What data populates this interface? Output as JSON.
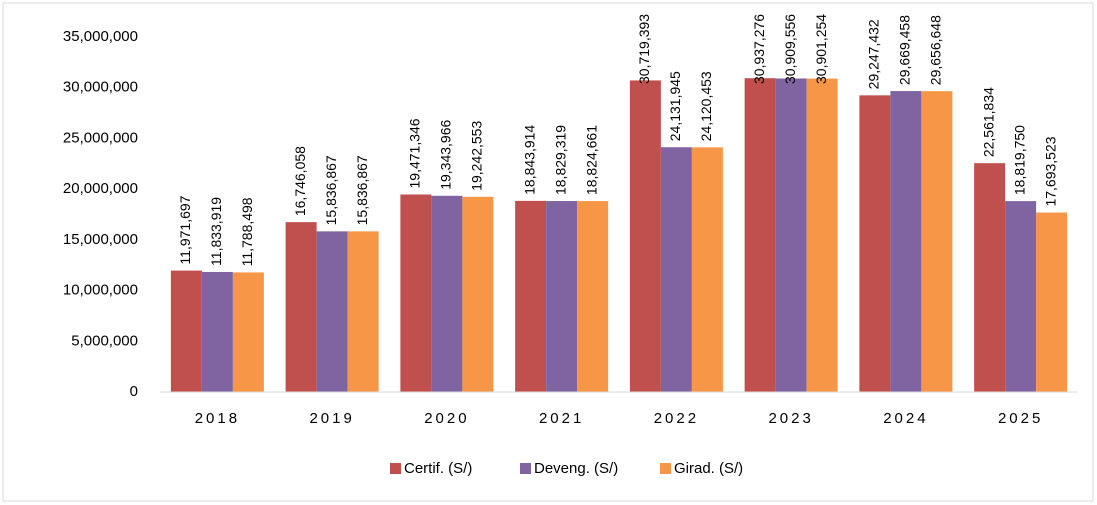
{
  "chart_data": {
    "type": "bar",
    "categories": [
      "2018",
      "2019",
      "2020",
      "2021",
      "2022",
      "2023",
      "2024",
      "2025"
    ],
    "series": [
      {
        "name": "Certif. (S/)",
        "color": "#c0504d",
        "values": [
          11971697,
          16746058,
          19471346,
          18843914,
          30719393,
          30937276,
          29247432,
          22561834
        ],
        "value_labels": [
          "11,971,697",
          "16,746,058",
          "19,471,346",
          "18,843,914",
          "30,719,393",
          "30,937,276",
          "29,247,432",
          "22,561,834"
        ]
      },
      {
        "name": "Deveng. (S/)",
        "color": "#8064a2",
        "values": [
          11833919,
          15836867,
          19343966,
          18829319,
          24131945,
          30909556,
          29669458,
          18819750
        ],
        "value_labels": [
          "11,833,919",
          "15,836,867",
          "19,343,966",
          "18,829,319",
          "24,131,945",
          "30,909,556",
          "29,669,458",
          "18,819,750"
        ]
      },
      {
        "name": "Girad. (S/)",
        "color": "#f79646",
        "values": [
          11788498,
          15836867,
          19242553,
          18824661,
          24120453,
          30901254,
          29656648,
          17693523
        ],
        "value_labels": [
          "11,788,498",
          "15,836,867",
          "19,242,553",
          "18,824,661",
          "24,120,453",
          "30,901,254",
          "29,656,648",
          "17,693,523"
        ]
      }
    ],
    "ylim": [
      0,
      35000000
    ],
    "yticks": [
      0,
      {
        "value": 5000000,
        "label": "5,000,000"
      },
      {
        "value": 10000000,
        "label": "10,000,000"
      },
      {
        "value": 15000000,
        "label": "15,000,000"
      },
      {
        "value": 20000000,
        "label": "20,000,000"
      },
      {
        "value": 25000000,
        "label": "25,000,000"
      },
      {
        "value": 30000000,
        "label": "30,000,000"
      },
      {
        "value": 35000000,
        "label": "35,000,000"
      }
    ],
    "legend": "bottom"
  }
}
